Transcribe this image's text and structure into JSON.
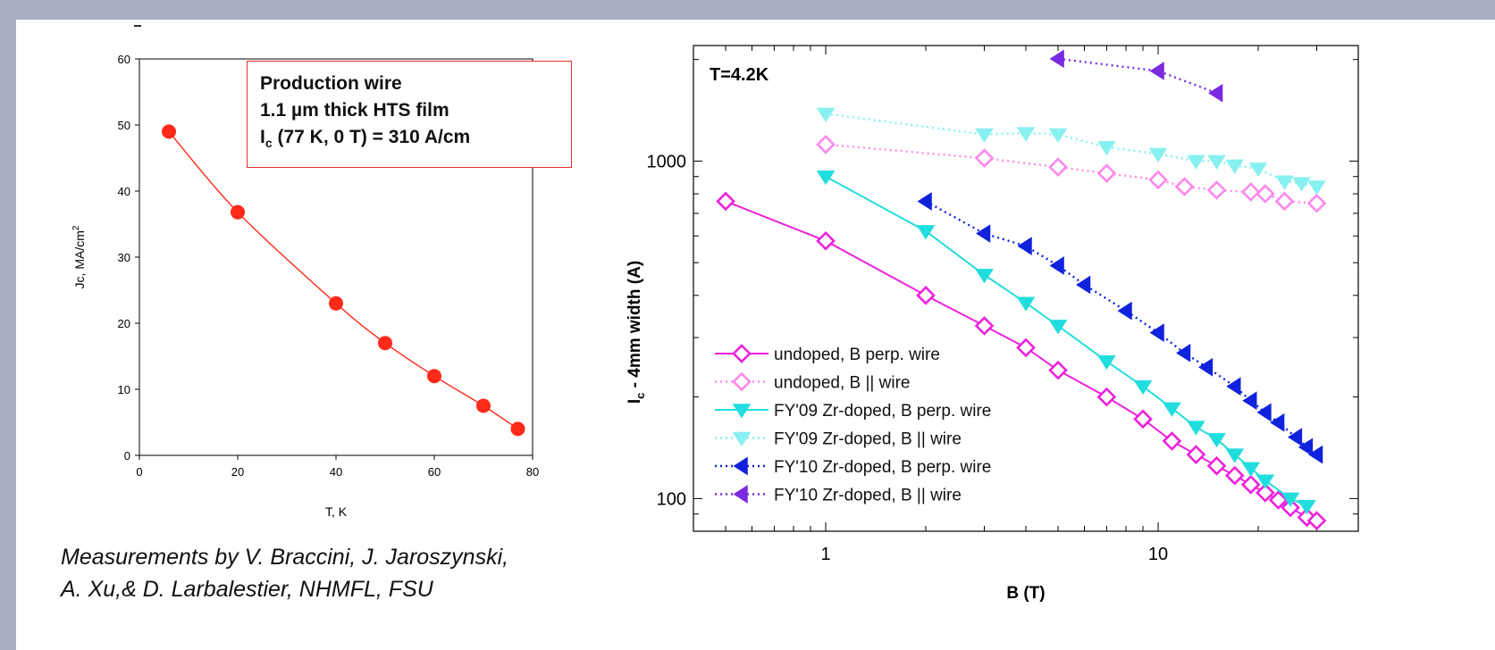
{
  "left_note": {
    "line1": "Production wire",
    "line2": "1.1 µm thick HTS film",
    "line3_prefix": "I",
    "line3_sub": "c",
    "line3_suffix": " (77 K, 0 T) = 310 A/cm"
  },
  "credit": {
    "line1": "Measurements by V. Braccini, J. Jaroszynski,",
    "line2": "A. Xu,& D. Larbalestier, NHMFL, FSU"
  },
  "chart_data": [
    {
      "type": "line",
      "xlabel": "T, K",
      "ylabel_main": "Jc, MA/cm",
      "ylabel_sup": "2",
      "xlim": [
        0,
        80
      ],
      "ylim": [
        0,
        60
      ],
      "xticks": [
        0,
        20,
        40,
        60,
        80
      ],
      "yticks": [
        0,
        10,
        20,
        30,
        40,
        50,
        60
      ],
      "color": "#ff2a1a",
      "x": [
        6,
        20,
        40,
        50,
        60,
        70,
        77
      ],
      "y": [
        49,
        36.8,
        23,
        17,
        12,
        7.5,
        4
      ]
    },
    {
      "type": "line",
      "xscale": "log",
      "yscale": "log",
      "xlabel": "B (T)",
      "ylabel_main": "I",
      "ylabel_sub": "c",
      "ylabel_rest": " - 4mm width (A)",
      "xlim": [
        0.4,
        40
      ],
      "ylim": [
        80,
        2200
      ],
      "xtick_labels": [
        "1",
        "10"
      ],
      "xtick_values": [
        1,
        10
      ],
      "ytick_labels": [
        "100",
        "1000"
      ],
      "ytick_values": [
        100,
        1000
      ],
      "annotation": "T=4.2K",
      "series": [
        {
          "name": "undoped, B perp. wire",
          "color": "#ee22dd",
          "marker": "diamond-open",
          "line": "solid",
          "x": [
            0.5,
            1,
            2,
            3,
            4,
            5,
            7,
            9,
            11,
            13,
            15,
            17,
            19,
            21,
            23,
            25,
            28,
            30
          ],
          "y": [
            760,
            580,
            400,
            325,
            280,
            240,
            200,
            172,
            148,
            135,
            125,
            117,
            110,
            104,
            99,
            94,
            88,
            86
          ]
        },
        {
          "name": "undoped, B || wire",
          "color": "#ff88ee",
          "marker": "diamond-open",
          "line": "dotted",
          "x": [
            1,
            3,
            5,
            7,
            10,
            12,
            15,
            19,
            21,
            24,
            30
          ],
          "y": [
            1120,
            1020,
            960,
            920,
            880,
            840,
            820,
            810,
            800,
            760,
            750
          ]
        },
        {
          "name": "FY'09 Zr-doped, B perp. wire",
          "color": "#22dddd",
          "marker": "triangle-down",
          "line": "solid",
          "x": [
            1,
            2,
            3,
            4,
            5,
            7,
            9,
            11,
            13,
            15,
            17,
            19,
            21,
            25,
            28
          ],
          "y": [
            900,
            620,
            460,
            380,
            325,
            255,
            215,
            185,
            163,
            150,
            135,
            123,
            113,
            100,
            95
          ]
        },
        {
          "name": "FY'09 Zr-doped, B || wire",
          "color": "#88f0f0",
          "marker": "triangle-down",
          "line": "dotted",
          "x": [
            1,
            3,
            4,
            5,
            7,
            10,
            13,
            15,
            17,
            20,
            24,
            27,
            30
          ],
          "y": [
            1380,
            1200,
            1210,
            1200,
            1100,
            1050,
            1000,
            1000,
            970,
            950,
            870,
            860,
            840
          ]
        },
        {
          "name": "FY'10 Zr-doped, B perp. wire",
          "color": "#1122dd",
          "marker": "triangle-left",
          "line": "dotted",
          "x": [
            2,
            3,
            4,
            5,
            6,
            8,
            10,
            12,
            14,
            17,
            19,
            21,
            23,
            26,
            28,
            30
          ],
          "y": [
            760,
            610,
            560,
            490,
            430,
            360,
            310,
            270,
            245,
            215,
            195,
            180,
            168,
            152,
            142,
            135
          ]
        },
        {
          "name": "FY'10 Zr-doped, B || wire",
          "color": "#7a2ae0",
          "marker": "triangle-left",
          "line": "dotted",
          "x": [
            5,
            10,
            15
          ],
          "y": [
            2010,
            1850,
            1590
          ]
        }
      ]
    }
  ]
}
